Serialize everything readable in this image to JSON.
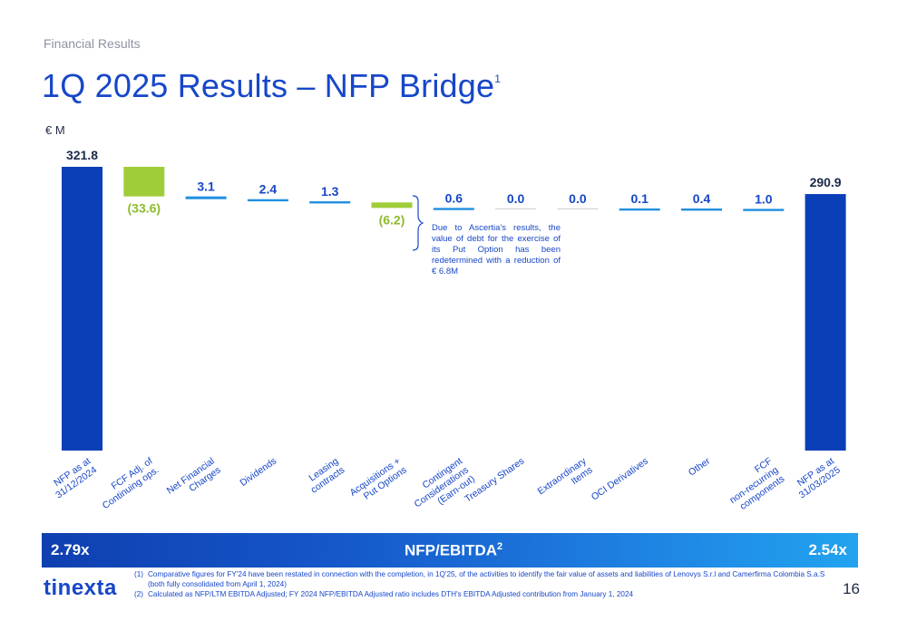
{
  "header": {
    "section": "Financial Results",
    "title": "1Q 2025 Results – NFP Bridge",
    "title_sup": "1",
    "unit": "€ M"
  },
  "chart_data": {
    "type": "bar",
    "subtype": "waterfall",
    "categories": [
      "NFP as at 31/12/2024",
      "FCF Adj. of Continuing ops.",
      "Net Financial Charges",
      "Dividends",
      "Leasing contracts",
      "Acquisitions + Put Options",
      "Contingent Considerations (Earn-out)",
      "Treasury Shares",
      "Extraordinary Items",
      "OCI Derivatives",
      "Other",
      "FCF non-recurring components",
      "NFP as at 31/03/2025"
    ],
    "values": [
      321.8,
      -33.6,
      3.1,
      2.4,
      1.3,
      -6.2,
      0.6,
      0.0,
      0.0,
      0.1,
      0.4,
      1.0,
      290.9
    ],
    "labels": [
      "321.8",
      "(33.6)",
      "3.1",
      "2.4",
      "1.3",
      "(6.2)",
      "0.6",
      "0.0",
      "0.0",
      "0.1",
      "0.4",
      "1.0",
      "290.9"
    ],
    "kinds": [
      "total",
      "down",
      "up",
      "up",
      "up",
      "down",
      "up",
      "up",
      "up",
      "up",
      "up",
      "up",
      "total"
    ],
    "colors": {
      "total": "#0b3fb8",
      "down": "#9fcd3a",
      "up": "#1f8fe0",
      "flat": "#c8ccd2",
      "label_total": "#1a2a4a",
      "label_up": "#1747c8",
      "label_down": "#8dbb2e"
    },
    "annotation": "Due to Ascertia's results, the value of debt for the exercise of its Put Option has been redetermined with a reduction of € 6.8M"
  },
  "ratio_bar": {
    "left": "2.79x",
    "label": "NFP/EBITDA",
    "label_sup": "2",
    "right": "2.54x"
  },
  "footer": {
    "logo": "tinexta",
    "footnotes": [
      {
        "num": "(1)",
        "text": "Comparative figures for FY'24 have been restated in connection with the completion, in 1Q'25, of the activities to identify the fair value of assets and liabilities of Lenovys S.r.l and Camerfirma Colombia S.a.S (both fully consolidated from April 1, 2024)"
      },
      {
        "num": "(2)",
        "text": "Calculated as NFP/LTM EBITDA Adjusted; FY 2024 NFP/EBITDA Adjusted ratio includes DTH's EBITDA Adjusted contribution from January 1, 2024"
      }
    ],
    "page_number": "16"
  }
}
